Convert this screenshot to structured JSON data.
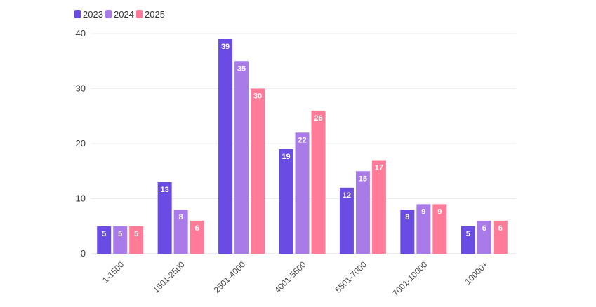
{
  "colors": {
    "2023": "#6a4be3",
    "2024": "#a87be8",
    "2025": "#ff7b98",
    "grid": "#ececec",
    "axis": "#dddddd"
  },
  "chart_data": {
    "type": "bar",
    "title": "",
    "xlabel": "",
    "ylabel": "",
    "ylim": [
      0,
      40
    ],
    "yticks": [
      0,
      10,
      20,
      30,
      40
    ],
    "grid": true,
    "legend_position": "top-left",
    "categories": [
      "1-1500",
      "1501-2500",
      "2501-4000",
      "4001-5500",
      "5501-7000",
      "7001-10000",
      "10000+"
    ],
    "series": [
      {
        "name": "2023",
        "color": "#6a4be3",
        "values": [
          5,
          13,
          39,
          19,
          12,
          8,
          5
        ]
      },
      {
        "name": "2024",
        "color": "#a87be8",
        "values": [
          5,
          8,
          35,
          22,
          15,
          9,
          6
        ]
      },
      {
        "name": "2025",
        "color": "#ff7b98",
        "values": [
          5,
          6,
          30,
          26,
          17,
          9,
          6
        ]
      }
    ]
  }
}
